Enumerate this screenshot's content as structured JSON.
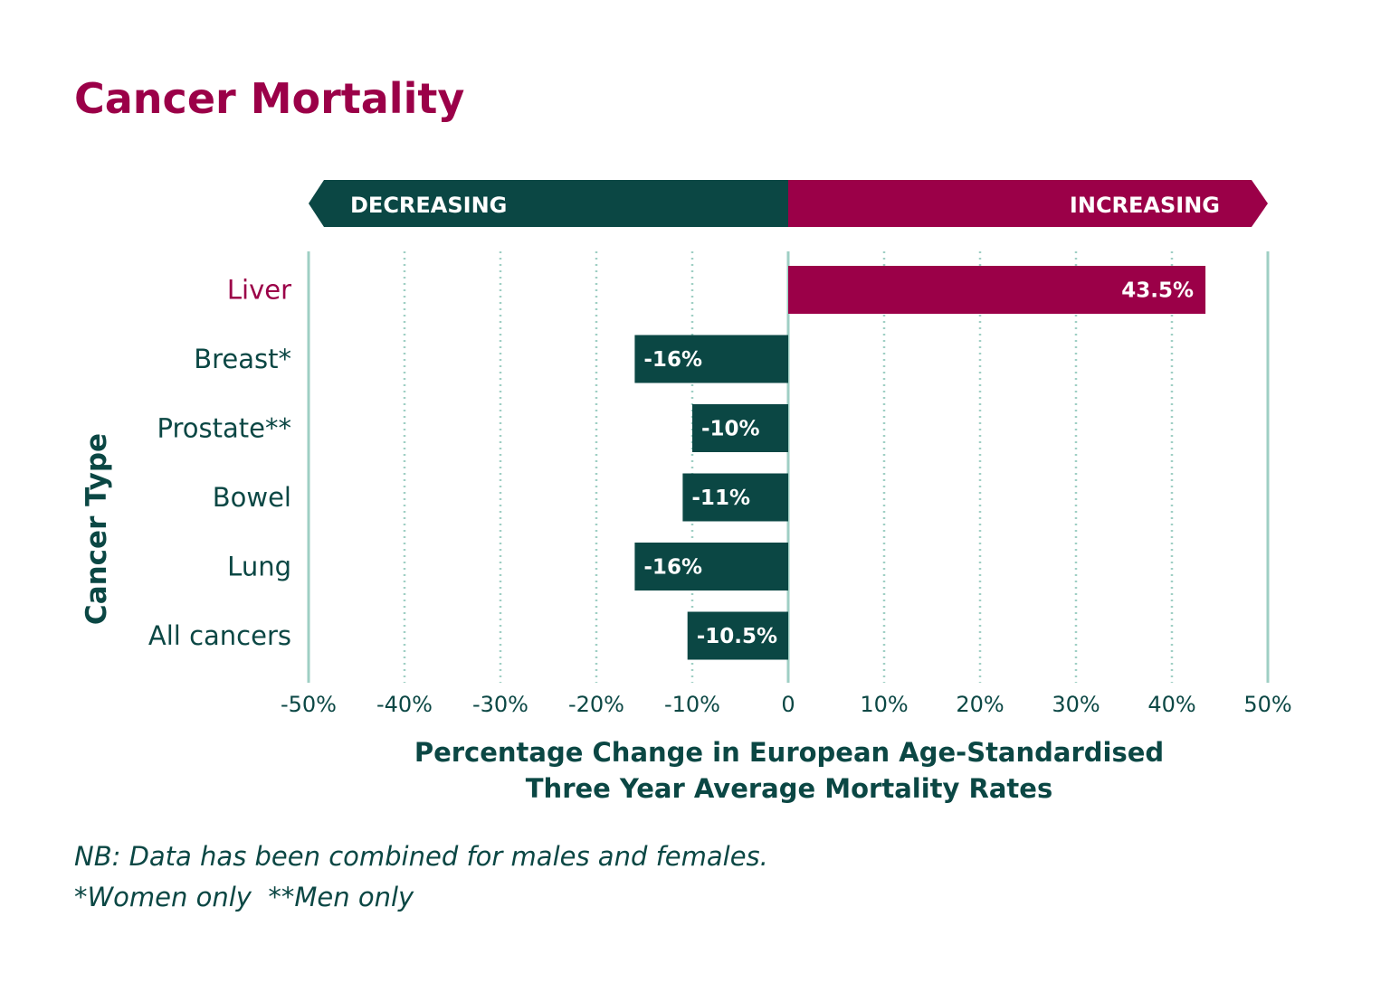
{
  "chart_data": {
    "type": "bar",
    "orientation": "horizontal",
    "title": "Cancer Mortality",
    "xlabel_line1": "Percentage Change in European Age-Standardised",
    "xlabel_line2": "Three Year Average Mortality Rates",
    "ylabel": "Cancer Type",
    "categories": [
      "Liver",
      "Breast*",
      "Prostate**",
      "Bowel",
      "Lung",
      "All cancers"
    ],
    "values": [
      43.5,
      -16,
      -10,
      -11,
      -16,
      -10.5
    ],
    "value_labels": [
      "43.5%",
      "-16%",
      "-10%",
      "-11%",
      "-16%",
      "-10.5%"
    ],
    "xlim": [
      -50,
      50
    ],
    "xticks": [
      -50,
      -40,
      -30,
      -20,
      -10,
      0,
      10,
      20,
      30,
      40,
      50
    ],
    "xtick_labels": [
      "-50%",
      "-40%",
      "-30%",
      "-20%",
      "-10%",
      "0",
      "10%",
      "20%",
      "30%",
      "40%",
      "50%"
    ],
    "grid": true,
    "direction_labels": {
      "negative": "DECREASING",
      "positive": "INCREASING"
    }
  },
  "notes": {
    "line1": "NB: Data has been combined for males and females.",
    "line2": "*Women only  **Men only"
  },
  "colors": {
    "positive": "#9b0048",
    "negative": "#0b4744",
    "title": "#9b0048",
    "text": "#0b4744",
    "grid": "#9fcfc4",
    "bar_label": "#ffffff"
  }
}
